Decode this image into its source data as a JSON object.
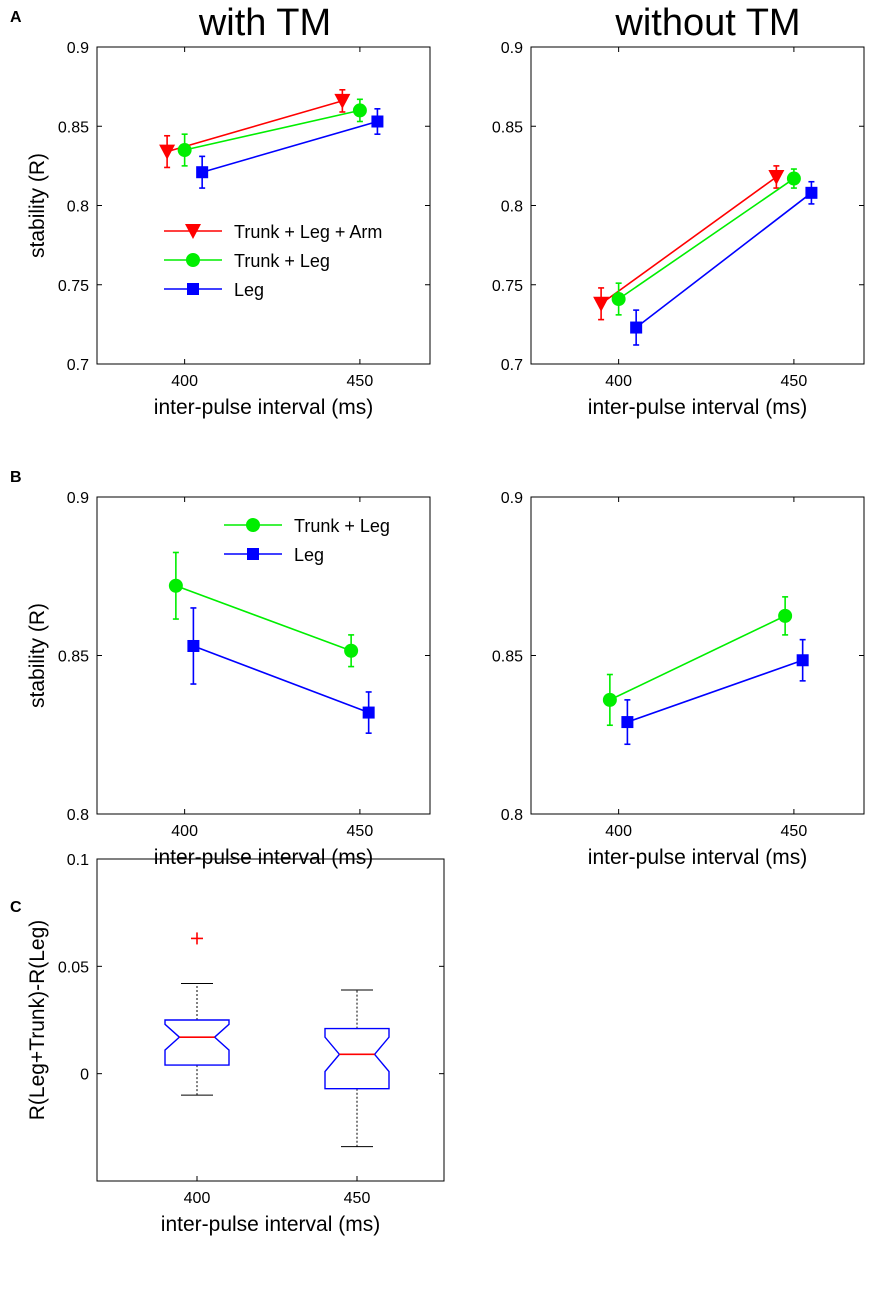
{
  "panel_letters": {
    "a": "A",
    "b": "B",
    "c": "C"
  },
  "column_titles": {
    "left": "with TM",
    "right": "without TM"
  },
  "colors": {
    "trunk_leg_arm": "#ff0000",
    "trunk_leg": "#00ee00",
    "leg": "#0000ff",
    "box": "#0000ff",
    "median": "#ff0000",
    "outlier": "#ff0000",
    "axis": "#000000"
  },
  "chart_data": [
    {
      "id": "A_with_TM",
      "type": "line",
      "title": "with TM",
      "xlabel": "inter-pulse interval (ms)",
      "ylabel": "stability (R)",
      "xlim": [
        375,
        470
      ],
      "ylim": [
        0.7,
        0.9
      ],
      "xticks": [
        400,
        450
      ],
      "xtick_labels": [
        "400",
        "450"
      ],
      "yticks": [
        0.7,
        0.75,
        0.8,
        0.85,
        0.9
      ],
      "ytick_labels": [
        "0.7",
        "0.75",
        "0.8",
        "0.85",
        "0.9"
      ],
      "legend": "upper-middle",
      "series": [
        {
          "name": "Trunk + Leg + Arm",
          "color": "#ff0000",
          "marker": "triangle-down",
          "x": [
            395,
            445
          ],
          "y": [
            0.834,
            0.866
          ],
          "err": [
            0.01,
            0.007
          ]
        },
        {
          "name": "Trunk + Leg",
          "color": "#00ee00",
          "marker": "circle",
          "x": [
            400,
            450
          ],
          "y": [
            0.835,
            0.86
          ],
          "err": [
            0.01,
            0.007
          ]
        },
        {
          "name": "Leg",
          "color": "#0000ff",
          "marker": "square",
          "x": [
            405,
            455
          ],
          "y": [
            0.821,
            0.853
          ],
          "err": [
            0.01,
            0.008
          ]
        }
      ]
    },
    {
      "id": "A_without_TM",
      "type": "line",
      "title": "without TM",
      "xlabel": "inter-pulse interval (ms)",
      "ylabel": "",
      "xlim": [
        375,
        470
      ],
      "ylim": [
        0.7,
        0.9
      ],
      "xticks": [
        400,
        450
      ],
      "xtick_labels": [
        "400",
        "450"
      ],
      "yticks": [
        0.7,
        0.75,
        0.8,
        0.85,
        0.9
      ],
      "ytick_labels": [
        "0.7",
        "0.75",
        "0.8",
        "0.85",
        "0.9"
      ],
      "legend": "none",
      "series": [
        {
          "name": "Trunk + Leg + Arm",
          "color": "#ff0000",
          "marker": "triangle-down",
          "x": [
            395,
            445
          ],
          "y": [
            0.738,
            0.818
          ],
          "err": [
            0.01,
            0.007
          ]
        },
        {
          "name": "Trunk + Leg",
          "color": "#00ee00",
          "marker": "circle",
          "x": [
            400,
            450
          ],
          "y": [
            0.741,
            0.817
          ],
          "err": [
            0.01,
            0.006
          ]
        },
        {
          "name": "Leg",
          "color": "#0000ff",
          "marker": "square",
          "x": [
            405,
            455
          ],
          "y": [
            0.723,
            0.808
          ],
          "err": [
            0.011,
            0.007
          ]
        }
      ]
    },
    {
      "id": "B_with_TM",
      "type": "line",
      "title": "",
      "xlabel": "inter-pulse interval (ms)",
      "ylabel": "stability (R)",
      "xlim": [
        375,
        470
      ],
      "ylim": [
        0.8,
        0.9
      ],
      "xticks": [
        400,
        450
      ],
      "xtick_labels": [
        "400",
        "450"
      ],
      "yticks": [
        0.8,
        0.85,
        0.9
      ],
      "ytick_labels": [
        "0.8",
        "0.85",
        "0.9"
      ],
      "legend": "upper-middle",
      "series": [
        {
          "name": "Trunk + Leg",
          "color": "#00ee00",
          "marker": "circle",
          "x": [
            397.5,
            447.5
          ],
          "y": [
            0.872,
            0.8515
          ],
          "err": [
            0.0105,
            0.005
          ]
        },
        {
          "name": "Leg",
          "color": "#0000ff",
          "marker": "square",
          "x": [
            402.5,
            452.5
          ],
          "y": [
            0.853,
            0.832
          ],
          "err": [
            0.012,
            0.0065
          ]
        }
      ]
    },
    {
      "id": "B_without_TM",
      "type": "line",
      "title": "",
      "xlabel": "inter-pulse interval (ms)",
      "ylabel": "",
      "xlim": [
        375,
        470
      ],
      "ylim": [
        0.8,
        0.9
      ],
      "xticks": [
        400,
        450
      ],
      "xtick_labels": [
        "400",
        "450"
      ],
      "yticks": [
        0.8,
        0.85,
        0.9
      ],
      "ytick_labels": [
        "0.8",
        "0.85",
        "0.9"
      ],
      "legend": "none",
      "series": [
        {
          "name": "Trunk + Leg",
          "color": "#00ee00",
          "marker": "circle",
          "x": [
            397.5,
            447.5
          ],
          "y": [
            0.836,
            0.8625
          ],
          "err": [
            0.008,
            0.006
          ]
        },
        {
          "name": "Leg",
          "color": "#0000ff",
          "marker": "square",
          "x": [
            402.5,
            452.5
          ],
          "y": [
            0.829,
            0.8485
          ],
          "err": [
            0.007,
            0.0065
          ]
        }
      ]
    },
    {
      "id": "C_box",
      "type": "box",
      "title": "",
      "xlabel": "inter-pulse interval (ms)",
      "ylabel": "R(Leg+Trunk)-R(Leg)",
      "ylim": [
        -0.05,
        0.1
      ],
      "yticks": [
        0,
        0.05,
        0.1
      ],
      "ytick_labels": [
        "0",
        "0.05",
        "0.1"
      ],
      "categories": [
        "400",
        "450"
      ],
      "boxes": [
        {
          "category": "400",
          "whisker_low": -0.01,
          "q1": 0.004,
          "median": 0.017,
          "q3": 0.025,
          "whisker_high": 0.042,
          "notch_low": 0.011,
          "notch_high": 0.023,
          "outliers": [
            0.063
          ]
        },
        {
          "category": "450",
          "whisker_low": -0.034,
          "q1": -0.007,
          "median": 0.009,
          "q3": 0.021,
          "whisker_high": 0.039,
          "notch_low": 0.001,
          "notch_high": 0.017,
          "outliers": []
        }
      ]
    }
  ]
}
